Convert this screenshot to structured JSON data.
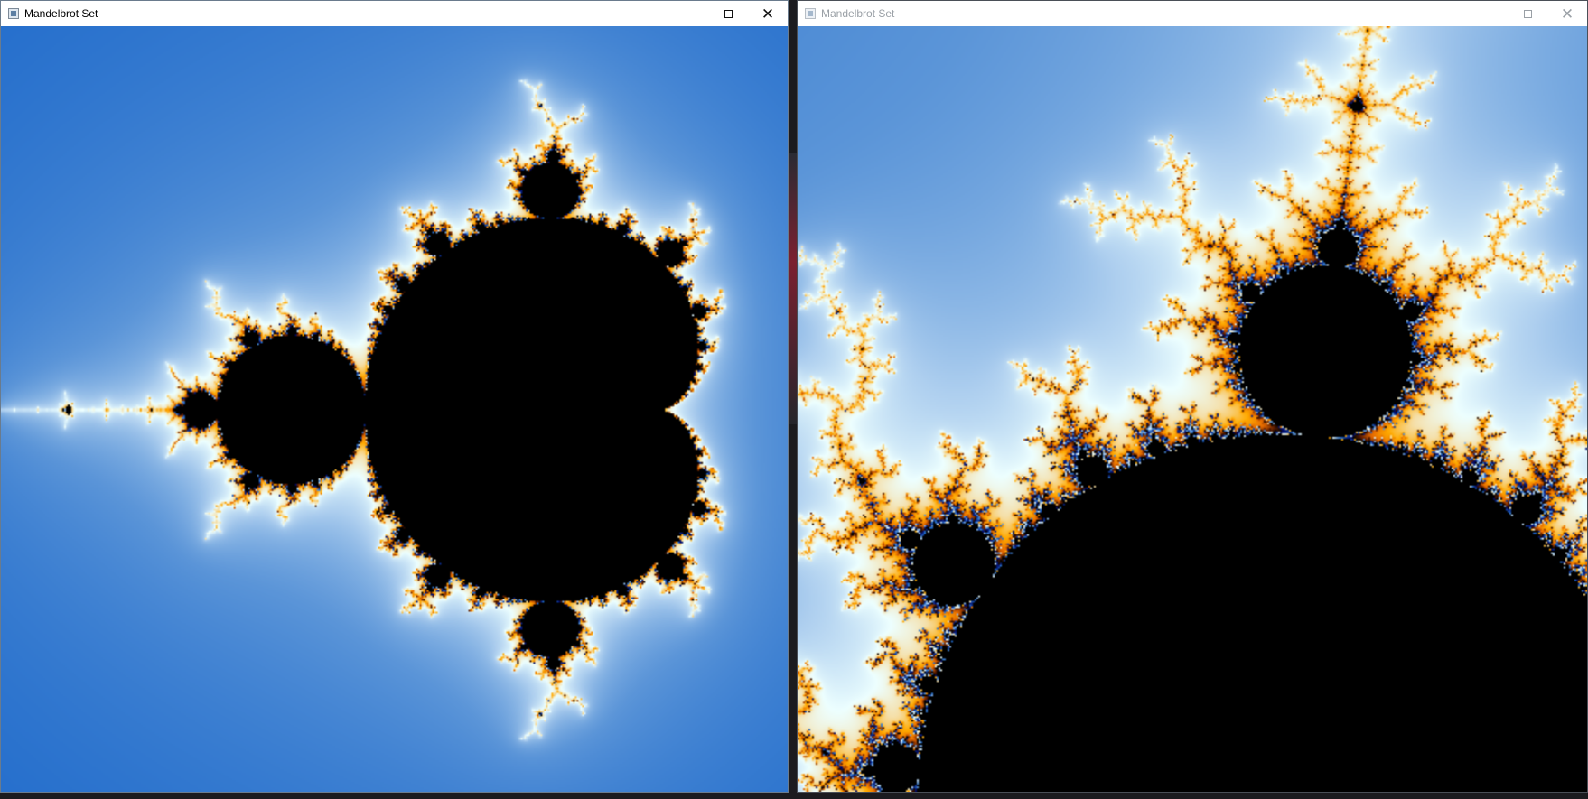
{
  "windows": [
    {
      "title": "Mandelbrot Set",
      "controls": {
        "minimize": "minimize",
        "maximize": "maximize",
        "close": "close"
      },
      "view": {
        "center_re": -0.65,
        "center_im": 0.0,
        "span": 2.6
      }
    },
    {
      "title": "Mandelbrot Set",
      "controls": {
        "minimize": "minimize",
        "maximize": "maximize",
        "close": "close"
      },
      "view": {
        "center_re": -0.148,
        "center_im": 0.845,
        "span": 0.2
      }
    }
  ],
  "palette": [
    "#000764",
    "#0b2a8a",
    "#206bcb",
    "#5b95d8",
    "#aecfef",
    "#edffff",
    "#f5dfa8",
    "#ffaa00",
    "#e66a00",
    "#5a1a00",
    "#000200"
  ]
}
